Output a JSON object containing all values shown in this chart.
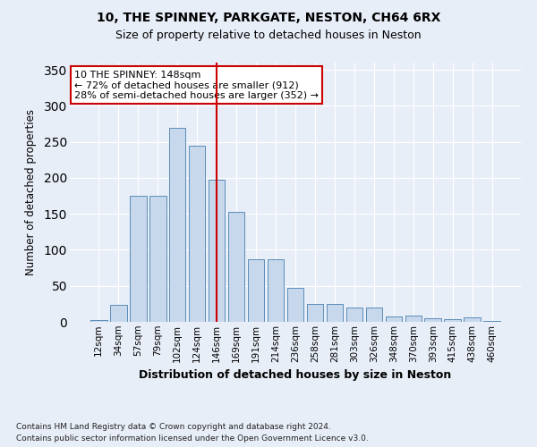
{
  "title1": "10, THE SPINNEY, PARKGATE, NESTON, CH64 6RX",
  "title2": "Size of property relative to detached houses in Neston",
  "xlabel": "Distribution of detached houses by size in Neston",
  "ylabel": "Number of detached properties",
  "categories": [
    "12sqm",
    "34sqm",
    "57sqm",
    "79sqm",
    "102sqm",
    "124sqm",
    "146sqm",
    "169sqm",
    "191sqm",
    "214sqm",
    "236sqm",
    "258sqm",
    "281sqm",
    "303sqm",
    "326sqm",
    "348sqm",
    "370sqm",
    "393sqm",
    "415sqm",
    "438sqm",
    "460sqm"
  ],
  "values": [
    2,
    23,
    175,
    175,
    270,
    245,
    198,
    153,
    87,
    87,
    47,
    25,
    25,
    20,
    20,
    7,
    9,
    5,
    4,
    6,
    1
  ],
  "bar_color": "#c8d8ec",
  "bar_edge_color": "#5b8db8",
  "vline_x_index": 6,
  "vline_color": "#cc0000",
  "annotation_line1": "10 THE SPINNEY: 148sqm",
  "annotation_line2": "← 72% of detached houses are smaller (912)",
  "annotation_line3": "28% of semi-detached houses are larger (352) →",
  "annotation_box_color": "#ffffff",
  "annotation_box_edge": "#cc0000",
  "bg_color": "#e8eef8",
  "grid_color": "#ffffff",
  "ylim": [
    0,
    360
  ],
  "yticks": [
    0,
    50,
    100,
    150,
    200,
    250,
    300,
    350
  ],
  "footnote1": "Contains HM Land Registry data © Crown copyright and database right 2024.",
  "footnote2": "Contains public sector information licensed under the Open Government Licence v3.0."
}
